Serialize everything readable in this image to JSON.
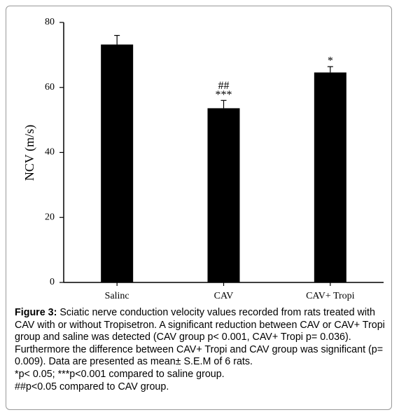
{
  "chart_data": {
    "type": "bar",
    "ylabel": "NCV (m/s)",
    "categories": [
      "Salinc",
      "CAV",
      "CAV+ Tropi"
    ],
    "values": [
      73.2,
      53.6,
      64.6
    ],
    "errors": [
      2.8,
      2.4,
      1.8
    ],
    "color": "#000000",
    "ylim": [
      0,
      80
    ],
    "yticks": [
      0,
      20,
      40,
      60,
      80
    ],
    "annotations": [
      {
        "text": "##",
        "category": "CAV"
      },
      {
        "text": "***",
        "category": "CAV"
      },
      {
        "text": "*",
        "category": "CAV+ Tropi"
      }
    ]
  },
  "caption": {
    "label": "Figure 3:",
    "text": "Sciatic nerve conduction velocity values recorded from rats treated with CAV with or without Tropisetron. A significant reduction between CAV or CAV+ Tropi group and saline was detected (CAV group p< 0.001, CAV+ Tropi p= 0.036). Furthermore the difference between CAV+ Tropi and CAV group was significant (p= 0.009). Data are presented as mean± S.E.M of 6 rats.",
    "notes": [
      "*p< 0.05; ***p<0.001 compared to saline group.",
      "##p<0.05 compared to CAV group."
    ]
  }
}
